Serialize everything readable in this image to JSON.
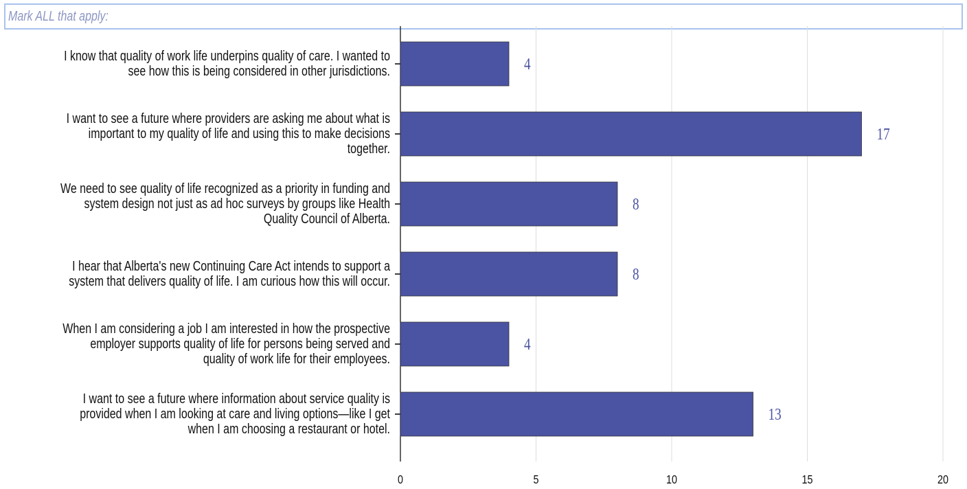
{
  "placeholder": "Mark ALL that apply:",
  "chart_data": {
    "type": "bar",
    "orientation": "horizontal",
    "categories": [
      "I know that quality of work life underpins quality of care. I wanted to\nsee how this is being considered in other jurisdictions.",
      "I want to see a future where providers are asking me about what is\nimportant to my quality of life and using this to make decisions\ntogether.",
      "We need to see quality of life recognized as a priority in funding and\nsystem design not just as ad hoc surveys by groups like Health\nQuality Council of Alberta.",
      "I hear that Alberta's new Continuing Care Act intends to support a\nsystem that delivers quality of life. I am curious how this will occur.",
      "When I am considering a job I am interested in how the prospective\nemployer supports quality of life for persons being served and\nquality of work life for their employees.",
      "I want to see a future where information about service quality is\nprovided when I am looking at care and living options—like I get\nwhen I am choosing a restaurant or hotel."
    ],
    "values": [
      4,
      17,
      8,
      8,
      4,
      13
    ],
    "color": "#4b53a3",
    "xlim": [
      0,
      20
    ],
    "xticks": [
      0,
      5,
      10,
      15,
      20
    ],
    "grid": true
  }
}
